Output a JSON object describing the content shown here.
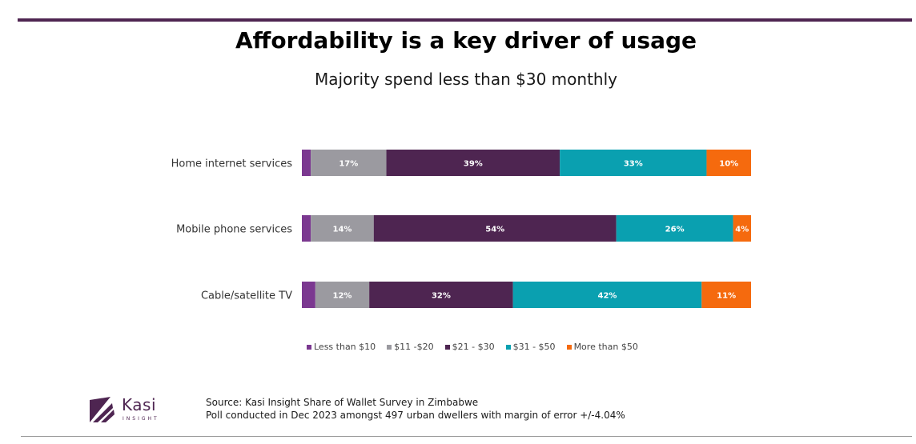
{
  "header": {
    "title": "Affordability is a key driver of usage",
    "subtitle": "Majority spend less than $30 monthly"
  },
  "chart_data": {
    "type": "bar",
    "orientation": "horizontal",
    "stacked": true,
    "title": "Affordability is a key driver of usage",
    "subtitle": "Majority spend less than $30 monthly",
    "xlabel": "",
    "ylabel": "",
    "xlim": [
      0,
      100
    ],
    "grid": false,
    "legend_position": "bottom",
    "categories": [
      "Home internet services",
      "Mobile phone services",
      "Cable/satellite TV"
    ],
    "series": [
      {
        "name": "Less than $10",
        "color": "#7b3890",
        "values": [
          2,
          2,
          3
        ],
        "labels": [
          "",
          "",
          ""
        ]
      },
      {
        "name": "$11 -$20",
        "color": "#9b9aa0",
        "values": [
          17,
          14,
          12
        ],
        "labels": [
          "17%",
          "14%",
          "12%"
        ]
      },
      {
        "name": "$21 - $30",
        "color": "#4e2551",
        "values": [
          39,
          54,
          32
        ],
        "labels": [
          "39%",
          "54%",
          "32%"
        ]
      },
      {
        "name": "$31 - $50",
        "color": "#0aa0b0",
        "values": [
          33,
          26,
          42
        ],
        "labels": [
          "33%",
          "26%",
          "42%"
        ]
      },
      {
        "name": "More than $50",
        "color": "#f56a0e",
        "values": [
          10,
          4,
          11
        ],
        "labels": [
          "10%",
          "4%",
          "11%"
        ]
      }
    ]
  },
  "logo": {
    "name": "Kasi",
    "subtitle": "INSIGHT",
    "color": "#4e2551"
  },
  "source": {
    "line1": "Source: Kasi Insight Share of Wallet Survey in Zimbabwe",
    "line2": "Poll conducted  in Dec 2023 amongst 497 urban dwellers with margin of error +/-4.04%"
  }
}
